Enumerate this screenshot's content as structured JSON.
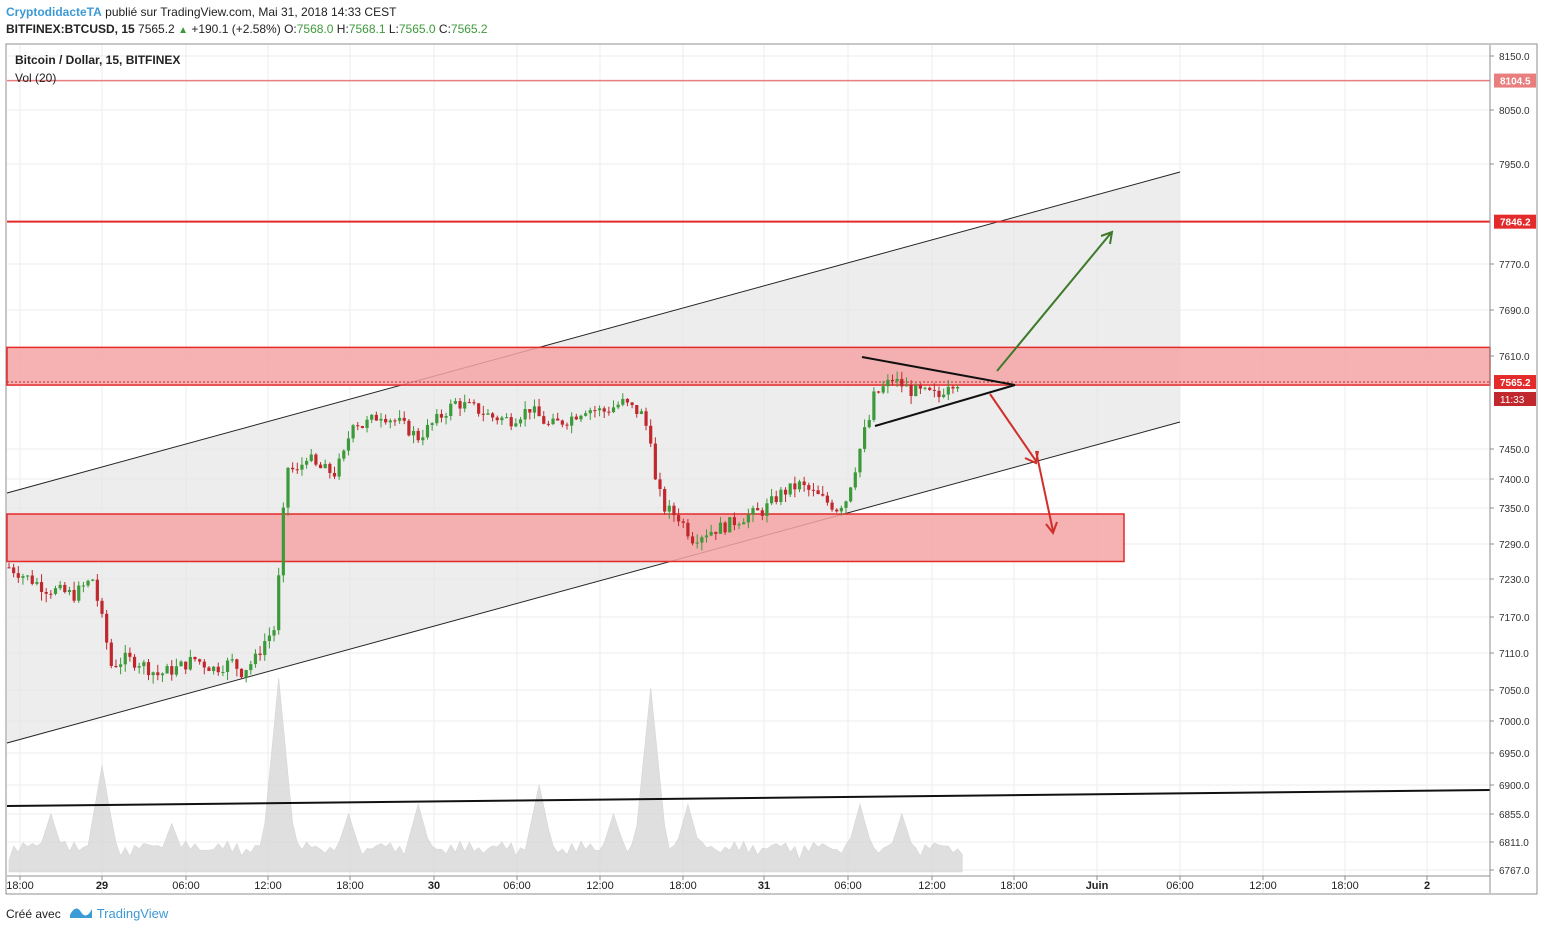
{
  "header": {
    "author": "CryptodidacteTA",
    "published": "publié sur TradingView.com, Mai 31, 2018 14:33 CEST",
    "symbol": "BITFINEX:BTCUSD, 15",
    "last": "7565.2",
    "change": "+190.1 (+2.58%)",
    "o_label": "O:",
    "o_value": "7568.0",
    "h_label": "H:",
    "h_value": "7568.1",
    "l_label": "L:",
    "l_value": "7565.0",
    "c_label": "C:",
    "c_value": "7565.2"
  },
  "legend": {
    "title": "Bitcoin / Dollar, 15, BITFINEX",
    "volume": "Vol (20)"
  },
  "footer": {
    "created_with": "Créé avec",
    "brand": "TradingView"
  },
  "colors": {
    "up": "#3c9a3a",
    "down": "#c0282e",
    "zone_fill": "#f4a5a5",
    "zone_stroke": "#e32b2b",
    "channel_fill": "#e6e6e6",
    "arrow_green": "#3d7a2a",
    "arrow_red": "#d0302a",
    "brand": "#3c9ad6"
  },
  "chart_data": {
    "type": "candlestick",
    "title": "Bitcoin / Dollar, 15, BITFINEX",
    "ylim": [
      6740,
      8175
    ],
    "y_ticks": [
      8150,
      8050,
      7950,
      7770,
      7690,
      7610,
      7450,
      7400,
      7350,
      7290,
      7230,
      7170,
      7110,
      7050,
      7000,
      6950,
      6900,
      6855,
      6811,
      6767
    ],
    "x_ticks": [
      "18:00",
      "29",
      "06:00",
      "12:00",
      "18:00",
      "30",
      "06:00",
      "12:00",
      "18:00",
      "31",
      "06:00",
      "12:00",
      "18:00",
      "Juin",
      "06:00",
      "12:00",
      "18:00",
      "2"
    ],
    "price_labels": [
      {
        "text": "8104.5",
        "value": 8104.5
      },
      {
        "text": "7846.2",
        "value": 7846.2
      },
      {
        "text": "7565.2",
        "value": 7565.2
      },
      {
        "text": "11:33",
        "value": 7536
      }
    ],
    "horizontal_lines": [
      {
        "value": 8104.5
      },
      {
        "value": 7846.2
      }
    ],
    "zones": [
      {
        "from": 7560,
        "to": 7625
      },
      {
        "from": 7260,
        "to": 7340
      }
    ],
    "price_path": [
      [
        0,
        7250
      ],
      [
        8,
        7215
      ],
      [
        14,
        7205
      ],
      [
        18,
        7230
      ],
      [
        20,
        7165
      ],
      [
        22,
        7090
      ],
      [
        25,
        7100
      ],
      [
        28,
        7095
      ],
      [
        32,
        7075
      ],
      [
        36,
        7085
      ],
      [
        40,
        7100
      ],
      [
        44,
        7085
      ],
      [
        48,
        7095
      ],
      [
        50,
        7080
      ],
      [
        53,
        7100
      ],
      [
        55,
        7130
      ],
      [
        57,
        7150
      ],
      [
        58,
        7230
      ],
      [
        59,
        7340
      ],
      [
        60,
        7420
      ],
      [
        62,
        7410
      ],
      [
        64,
        7440
      ],
      [
        66,
        7420
      ],
      [
        70,
        7410
      ],
      [
        72,
        7440
      ],
      [
        74,
        7500
      ],
      [
        76,
        7490
      ],
      [
        80,
        7510
      ],
      [
        84,
        7495
      ],
      [
        88,
        7470
      ],
      [
        92,
        7500
      ],
      [
        96,
        7530
      ],
      [
        100,
        7520
      ],
      [
        104,
        7505
      ],
      [
        108,
        7500
      ],
      [
        112,
        7520
      ],
      [
        116,
        7490
      ],
      [
        120,
        7500
      ],
      [
        124,
        7520
      ],
      [
        128,
        7515
      ],
      [
        132,
        7530
      ],
      [
        136,
        7510
      ],
      [
        138,
        7470
      ],
      [
        139,
        7395
      ],
      [
        141,
        7350
      ],
      [
        144,
        7335
      ],
      [
        147,
        7300
      ],
      [
        150,
        7310
      ],
      [
        154,
        7320
      ],
      [
        158,
        7335
      ],
      [
        162,
        7345
      ],
      [
        166,
        7375
      ],
      [
        170,
        7390
      ],
      [
        174,
        7370
      ],
      [
        178,
        7350
      ],
      [
        180,
        7365
      ],
      [
        182,
        7420
      ],
      [
        184,
        7480
      ],
      [
        185,
        7500
      ],
      [
        186,
        7540
      ],
      [
        190,
        7570
      ],
      [
        194,
        7550
      ],
      [
        198,
        7545
      ],
      [
        200,
        7540
      ],
      [
        202,
        7565
      ]
    ],
    "volume_ylim": [
      0,
      100
    ],
    "volume_spikes": [
      [
        9,
        30
      ],
      [
        20,
        55
      ],
      [
        35,
        25
      ],
      [
        58,
        100
      ],
      [
        73,
        30
      ],
      [
        88,
        35
      ],
      [
        114,
        45
      ],
      [
        130,
        30
      ],
      [
        138,
        95
      ],
      [
        146,
        35
      ],
      [
        183,
        35
      ],
      [
        192,
        30
      ]
    ]
  }
}
